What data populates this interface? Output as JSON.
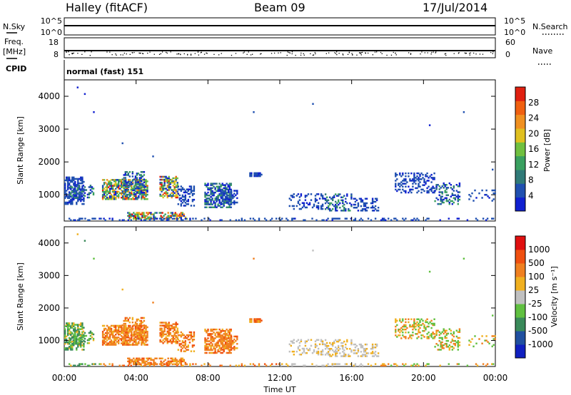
{
  "header": {
    "title": "Halley (fitACF)",
    "beam": "Beam 09",
    "date": "17/Jul/2014"
  },
  "noise_panel": {
    "left_label": "N.Sky",
    "left_ticks": [
      "10^5",
      "10^0"
    ],
    "right_label": "N.Search",
    "right_ticks": [
      "10^5",
      "10^0"
    ]
  },
  "freq_panel": {
    "left_label_1": "Freq.",
    "left_label_2": "[MHz]",
    "left_ticks": [
      "18",
      "8"
    ],
    "right_label": "Nave",
    "right_ticks": [
      "60",
      "0"
    ]
  },
  "cpid": {
    "label": "CPID",
    "value": "normal (fast) 151"
  },
  "colors": {
    "power_scale": [
      "#1020d0",
      "#2050b0",
      "#307a78",
      "#3aa060",
      "#70c040",
      "#e0c020",
      "#f09020",
      "#f06010",
      "#e02010"
    ],
    "velocity_scale": [
      "#1020c0",
      "#2050a0",
      "#3a8a5a",
      "#60c040",
      "#c0c0c0",
      "#f0b020",
      "#f08020",
      "#f05010",
      "#e01010"
    ]
  },
  "chart_data": [
    {
      "type": "heatmap",
      "name": "power",
      "ylabel": "Slant Range [km]",
      "y_ticks": [
        "1000",
        "2000",
        "3000",
        "4000"
      ],
      "ylim": [
        200,
        4500
      ],
      "xlim_hours": [
        0,
        24
      ],
      "colorbar_label": "Power [dB]",
      "colorbar_ticks": [
        "4",
        "8",
        "12",
        "16",
        "20",
        "24",
        "28"
      ],
      "colorbar_range": [
        0,
        32
      ]
    },
    {
      "type": "heatmap",
      "name": "velocity",
      "ylabel": "Slant Range [km]",
      "y_ticks": [
        "1000",
        "2000",
        "3000",
        "4000"
      ],
      "ylim": [
        200,
        4500
      ],
      "xlim_hours": [
        0,
        24
      ],
      "colorbar_label": "Velocity [m s⁻¹]",
      "colorbar_ticks": [
        "1000",
        "500",
        "100",
        "25",
        "-25",
        "-100",
        "-500",
        "-1000"
      ],
      "x_ticks": [
        "00:00",
        "04:00",
        "08:00",
        "12:00",
        "16:00",
        "20:00",
        "00:00"
      ],
      "xlabel": "Time UT"
    }
  ]
}
